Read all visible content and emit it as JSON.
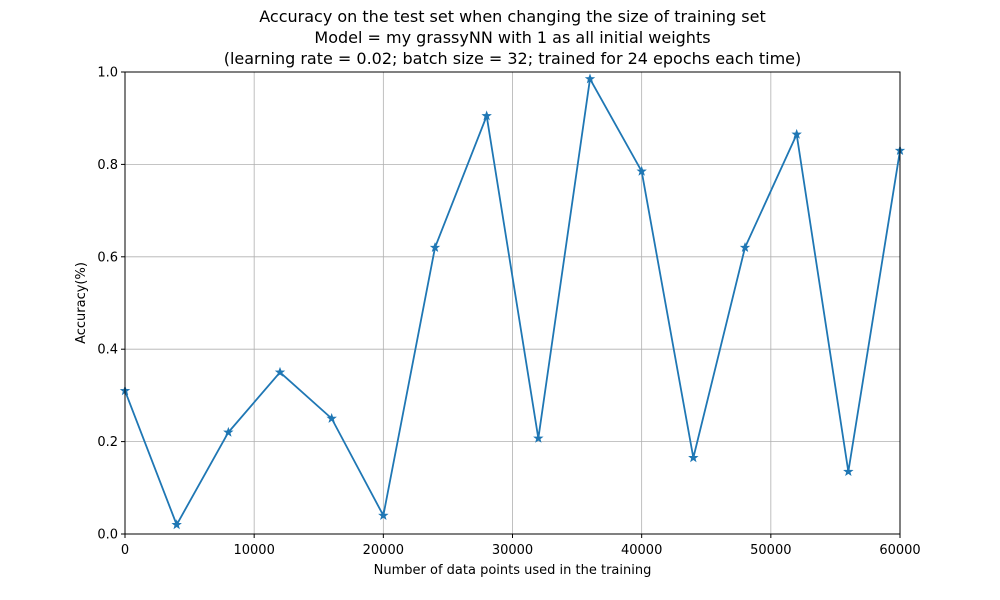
{
  "chart_data": {
    "type": "line",
    "title_lines": [
      "Accuracy on the test set when changing the size of training set",
      "Model = my grassyNN with 1 as all initial weights",
      "(learning rate = 0.02; batch size = 32; trained for 24 epochs each time)"
    ],
    "xlabel": "Number of data points used in the training",
    "ylabel": "Accuracy(%)",
    "xlim": [
      0,
      60000
    ],
    "ylim": [
      0,
      1.0
    ],
    "x_ticks": [
      0,
      10000,
      20000,
      30000,
      40000,
      50000,
      60000
    ],
    "x_tick_labels": [
      "0",
      "10000",
      "20000",
      "30000",
      "40000",
      "50000",
      "60000"
    ],
    "y_ticks": [
      0,
      0.2,
      0.4,
      0.6,
      0.8,
      1.0
    ],
    "y_tick_labels": [
      "0.0",
      "0.2",
      "0.4",
      "0.6",
      "0.8",
      "1.0"
    ],
    "grid": true,
    "marker": "star",
    "color": "#1f77b4",
    "x": [
      0,
      4000,
      8000,
      12000,
      16000,
      20000,
      24000,
      28000,
      32000,
      36000,
      40000,
      44000,
      48000,
      52000,
      56000,
      60000
    ],
    "y": [
      0.31,
      0.02,
      0.22,
      0.35,
      0.25,
      0.04,
      0.62,
      0.905,
      0.207,
      0.985,
      0.785,
      0.165,
      0.62,
      0.865,
      0.135,
      0.83
    ]
  }
}
